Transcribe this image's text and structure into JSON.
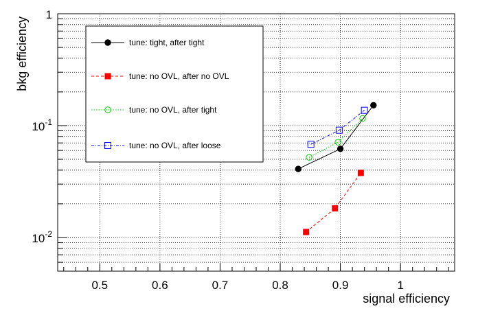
{
  "chart_data": {
    "type": "line",
    "title": "",
    "xlabel": "signal efficiency",
    "ylabel": "bkg efficiency",
    "xlim": [
      0.43,
      1.09
    ],
    "ylim": [
      0.005,
      1
    ],
    "y_scale": "log",
    "grid": true,
    "legend_position": "top-left",
    "x_ticks": [
      0.5,
      0.6,
      0.7,
      0.8,
      0.9,
      1.0
    ],
    "x_tick_labels": [
      "0.5",
      "0.6",
      "0.7",
      "0.8",
      "0.9",
      "1"
    ],
    "y_tick_labels": [
      {
        "value": 0.01,
        "base": "10",
        "exp": "-2"
      },
      {
        "value": 0.1,
        "base": "10",
        "exp": "-1"
      },
      {
        "value": 1,
        "base": "1",
        "exp": ""
      }
    ],
    "series": [
      {
        "name": "tune: tight, after tight",
        "color": "#000000",
        "marker": "filled-circle",
        "line": "solid",
        "points": [
          [
            0.83,
            0.041
          ],
          [
            0.9,
            0.062
          ],
          [
            0.955,
            0.152
          ]
        ]
      },
      {
        "name": "tune: no OVL, after no OVL",
        "color": "#ff0000",
        "marker": "filled-square",
        "line": "dashed",
        "points": [
          [
            0.843,
            0.0112
          ],
          [
            0.891,
            0.0182
          ],
          [
            0.934,
            0.0378
          ]
        ]
      },
      {
        "name": "tune: no OVL, after tight",
        "color": "#00cc00",
        "marker": "open-circle",
        "line": "dotted",
        "points": [
          [
            0.848,
            0.052
          ],
          [
            0.896,
            0.071
          ],
          [
            0.937,
            0.116
          ]
        ]
      },
      {
        "name": "tune: no OVL, after loose",
        "color": "#0000ff",
        "marker": "open-square",
        "line": "dash-dot",
        "points": [
          [
            0.851,
            0.068
          ],
          [
            0.898,
            0.091
          ],
          [
            0.94,
            0.137
          ]
        ]
      }
    ]
  }
}
